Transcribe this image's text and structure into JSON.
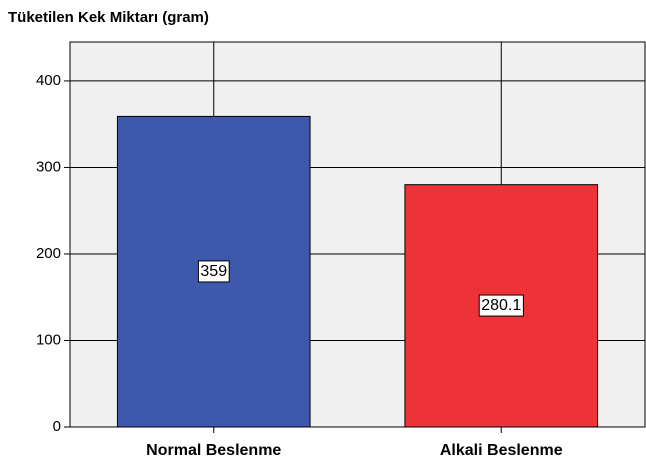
{
  "chart_data": {
    "type": "bar",
    "title": "Tüketilen Kek Miktarı (gram)",
    "categories": [
      "Normal Beslenme",
      "Alkali Beslenme"
    ],
    "series": [
      {
        "name": null,
        "colors": [
          "#3e58ac",
          "#ee3338"
        ],
        "values": [
          359,
          280.1
        ]
      }
    ],
    "ylim": [
      0,
      445
    ],
    "yticks": [
      0,
      100,
      200,
      300,
      400
    ],
    "grid": true
  }
}
